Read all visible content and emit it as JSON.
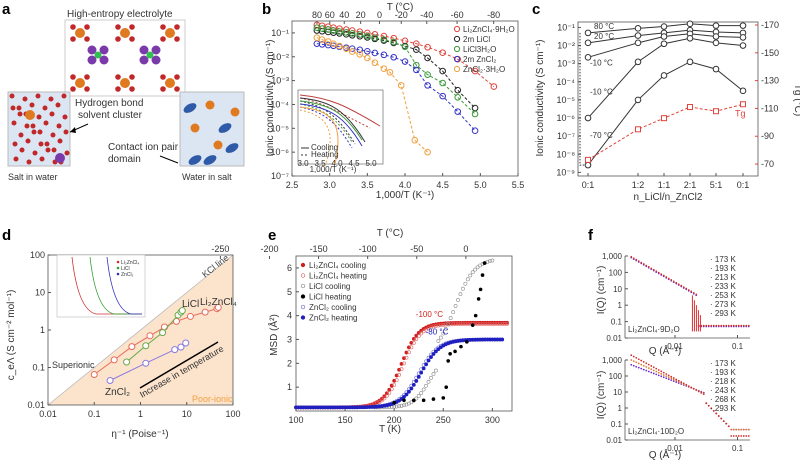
{
  "figure": {
    "panels": [
      "a",
      "b",
      "c",
      "d",
      "e",
      "f"
    ]
  },
  "panel_a": {
    "title": "High-entropy electrolyte",
    "labels": {
      "hbond": [
        "Hydrogen bond",
        "solvent cluster"
      ],
      "contact": [
        "Contact ion pair",
        "domain"
      ],
      "salt_in_water": "Salt in water",
      "water_in_salt": "Water in salt"
    }
  },
  "chart_data": [
    {
      "panel": "b",
      "type": "scatter",
      "xlabel": "1,000/T (K⁻¹)",
      "ylabel": "Ionic conductivity (S cm⁻¹)",
      "top_xlabel": "T (°C)",
      "xlim": [
        2.5,
        5.5
      ],
      "ylim_log10": [
        -7,
        -0.5
      ],
      "xticks": [
        "2.5",
        "3.0",
        "3.5",
        "4.0",
        "4.5",
        "5.0",
        "5.5"
      ],
      "yticks": [
        "10⁻⁷",
        "10⁻⁶",
        "10⁻⁵",
        "10⁻⁴",
        "10⁻³",
        "10⁻²",
        "10⁻¹"
      ],
      "top_xticks": [
        "80",
        "60",
        "40",
        "20",
        "0",
        "-20",
        "-40",
        "-60",
        "-80"
      ],
      "series": [
        {
          "name": "Li₂ZnCl₄·9H₂O",
          "color": "#e0443c",
          "x": [
            2.83,
            2.9,
            2.98,
            3.05,
            3.13,
            3.22,
            3.3,
            3.4,
            3.5,
            3.6,
            3.72,
            3.85,
            4.0,
            4.15,
            4.3,
            4.5,
            4.7,
            4.93,
            5.18
          ],
          "log10y": [
            -0.66,
            -0.7,
            -0.74,
            -0.78,
            -0.82,
            -0.86,
            -0.9,
            -0.95,
            -1.0,
            -1.06,
            -1.13,
            -1.22,
            -1.33,
            -1.45,
            -1.6,
            -1.83,
            -2.1,
            -2.6,
            -3.25
          ]
        },
        {
          "name": "2m LiCl",
          "color": "#222222",
          "x": [
            2.83,
            2.9,
            2.98,
            3.05,
            3.13,
            3.22,
            3.3,
            3.4,
            3.5,
            3.6,
            3.72,
            3.85,
            4.0,
            4.15,
            4.3,
            4.5,
            4.7,
            4.93
          ],
          "log10y": [
            -0.9,
            -0.93,
            -0.96,
            -0.99,
            -1.02,
            -1.06,
            -1.1,
            -1.14,
            -1.19,
            -1.25,
            -1.32,
            -1.42,
            -1.55,
            -1.7,
            -2.05,
            -2.6,
            -3.4,
            -4.15
          ]
        },
        {
          "name": "LiCl3H₂O",
          "color": "#3a9a3a",
          "x": [
            2.83,
            2.9,
            2.98,
            3.05,
            3.13,
            3.22,
            3.3,
            3.4,
            3.5,
            3.6,
            3.72,
            3.85,
            4.0,
            4.15,
            4.3,
            4.5,
            4.7,
            4.93
          ],
          "log10y": [
            -0.78,
            -0.82,
            -0.86,
            -0.9,
            -0.94,
            -0.98,
            -1.02,
            -1.07,
            -1.13,
            -1.2,
            -1.28,
            -1.38,
            -1.58,
            -2.35,
            -2.75,
            -3.1,
            -3.7,
            -4.4
          ]
        },
        {
          "name": "2m ZnCl₂",
          "color": "#3535c8",
          "x": [
            2.83,
            2.9,
            2.98,
            3.05,
            3.13,
            3.22,
            3.3,
            3.4,
            3.5,
            3.6,
            3.72,
            3.85,
            4.0,
            4.15,
            4.3,
            4.5,
            4.7,
            4.93
          ],
          "log10y": [
            -1.45,
            -1.48,
            -1.51,
            -1.54,
            -1.58,
            -1.62,
            -1.66,
            -1.71,
            -1.77,
            -1.84,
            -1.92,
            -2.02,
            -2.2,
            -2.55,
            -3.2,
            -3.65,
            -4.3,
            -5.1
          ]
        },
        {
          "name": "ZnCl₂·3H₂O",
          "color": "#f0a040",
          "x": [
            2.83,
            2.9,
            2.98,
            3.05,
            3.13,
            3.22,
            3.3,
            3.4,
            3.5,
            3.6,
            3.72,
            3.8,
            3.95,
            4.13,
            4.3
          ],
          "log10y": [
            -1.2,
            -1.28,
            -1.36,
            -1.45,
            -1.55,
            -1.66,
            -1.78,
            -1.9,
            -2.05,
            -2.25,
            -2.5,
            -2.65,
            -3.2,
            -5.5,
            -6.0
          ]
        }
      ],
      "inset": {
        "xlabel": "1,000/T (K⁻¹)",
        "xticks": [
          "3.0",
          "3.5",
          "4.0",
          "4.5",
          "5.0"
        ],
        "legend": [
          "Cooling",
          "Heating"
        ]
      }
    },
    {
      "panel": "c",
      "type": "line",
      "xlabel": "n_LiCl/n_ZnCl2",
      "ylabel": "Ionic conductivity (S cm⁻¹)",
      "ylabel_right": "Tg (°C)",
      "categories": [
        "0:1",
        "1:2",
        "1:1",
        "2:1",
        "5:1",
        "0:1"
      ],
      "yticks": [
        "10⁻⁹",
        "10⁻⁸",
        "10⁻⁷",
        "10⁻⁶",
        "10⁻⁵",
        "10⁻⁴",
        "10⁻³",
        "10⁻²",
        "10⁻¹"
      ],
      "right_yticks": [
        "-170",
        "-150",
        "-130",
        "-110",
        "-90",
        "-70"
      ],
      "ylim_log10": [
        -9.2,
        -0.7
      ],
      "right_ylim": [
        -170,
        -65
      ],
      "series": [
        {
          "name": "80 °C",
          "log10y": [
            -1.3,
            -1.05,
            -0.95,
            -0.8,
            -0.9,
            -0.9
          ]
        },
        {
          "name": "20 °C",
          "log10y": [
            -1.85,
            -1.45,
            -1.3,
            -1.15,
            -1.25,
            -1.3
          ]
        },
        {
          "name": "-10 °C",
          "log10y": [
            -2.65,
            -1.85,
            -1.5,
            -1.35,
            -1.5,
            -1.55
          ]
        },
        {
          "name": "-10 °C",
          "log10y": [
            -6.0,
            -2.9,
            -1.9,
            -1.6,
            -1.85,
            -2.0
          ]
        },
        {
          "name": "-70 °C",
          "log10y": [
            -8.6,
            -5.0,
            -3.65,
            -2.9,
            -3.3,
            -4.5
          ]
        }
      ],
      "tg": {
        "name": "Tg",
        "color": "#e0443c",
        "values": [
          -73,
          -95,
          -103,
          -111,
          -108,
          -113
        ]
      }
    },
    {
      "panel": "d",
      "type": "scatter",
      "xlabel": "η⁻¹ (Poise⁻¹)",
      "ylabel": "c_eΛ (S cm⁻² mol⁻¹)",
      "xlim_log10": [
        -2,
        2
      ],
      "ylim_log10": [
        -2,
        2
      ],
      "xticks": [
        "0.01",
        "0.1",
        "1",
        "10",
        "100"
      ],
      "yticks": [
        "0.01",
        "0.1",
        "1",
        "10",
        "100"
      ],
      "annotations": [
        "KCl line",
        "Superionic",
        "Poor-ionic",
        "Increase in temperature"
      ],
      "series": [
        {
          "name": "Li₂ZnCl₄",
          "color": "#e86a5a",
          "x": [
            0.1,
            0.27,
            0.65,
            1.6,
            3.3,
            6.0,
            12,
            25,
            45,
            48
          ],
          "y": [
            0.065,
            0.16,
            0.36,
            0.7,
            1.2,
            1.7,
            2.3,
            3.0,
            3.7,
            4.0
          ]
        },
        {
          "name": "LiCl",
          "color": "#6aaa4a",
          "x": [
            0.5,
            1.3,
            3.0,
            6.5,
            7.5,
            8.0
          ],
          "y": [
            0.14,
            0.38,
            0.85,
            2.5,
            3.0,
            3.3
          ]
        },
        {
          "name": "ZnCl₂",
          "color": "#8a7ae0",
          "x": [
            0.22,
            1.3,
            5.5,
            7.5,
            9.5
          ],
          "y": [
            0.045,
            0.13,
            0.3,
            0.35,
            0.45
          ]
        }
      ],
      "inset_legend": [
        "Li₂ZnCl₄",
        "LiCl",
        "ZnCl₂"
      ]
    },
    {
      "panel": "e",
      "type": "scatter",
      "xlabel": "T (K)",
      "ylabel": "MSD (Å²)",
      "top_xlabel": "T (°C)",
      "xlim": [
        100,
        320
      ],
      "ylim": [
        0,
        6.5
      ],
      "xticks": [
        "100",
        "150",
        "200",
        "250",
        "300"
      ],
      "yticks": [
        "1",
        "2",
        "3",
        "4",
        "5",
        "6"
      ],
      "top_xticks": [
        "-250",
        "-200",
        "-150",
        "-100",
        "-50",
        "0"
      ],
      "annotations": [
        "-100 °C",
        "-80 °C"
      ],
      "series": [
        {
          "name": "Li₂ZnCl₄ cooling",
          "color": "#d02020",
          "filled": true
        },
        {
          "name": "Li₂ZnCl₄ heating",
          "color": "#e06060",
          "filled": false
        },
        {
          "name": "LiCl cooling",
          "color": "#888888",
          "filled": false
        },
        {
          "name": "LiCl heating",
          "color": "#000000",
          "filled": true
        },
        {
          "name": "ZnCl₂ cooling",
          "color": "#6a6ad0",
          "filled": false
        },
        {
          "name": "ZnCl₂ heating",
          "color": "#2020c0",
          "filled": true
        }
      ]
    },
    {
      "panel": "f-top",
      "type": "scatter",
      "xlabel": "Q (Å⁻¹)",
      "ylabel": "I(Q) (cm⁻¹)",
      "sample": "Li₂ZnCl₄·9D₂O",
      "yticks": [
        "0.01",
        "0.1",
        "1",
        "10",
        "100",
        "1,000"
      ],
      "xticks": [
        "0.01",
        "0.1"
      ],
      "legend": [
        "173 K",
        "193 K",
        "213 K",
        "233 K",
        "253 K",
        "273 K",
        "293 K"
      ]
    },
    {
      "panel": "f-bottom",
      "type": "scatter",
      "xlabel": "Q (Å⁻¹)",
      "ylabel": "I(Q) (cm⁻¹)",
      "sample": "Li₂ZnCl₄·10D₂O",
      "yticks": [
        "0.01",
        "0.1",
        "1",
        "10",
        "100",
        "1,000"
      ],
      "xticks": [
        "0.01",
        "0.1"
      ],
      "legend": [
        "173 K",
        "193 K",
        "218 K",
        "243 K",
        "268 K",
        "293 K"
      ]
    }
  ]
}
